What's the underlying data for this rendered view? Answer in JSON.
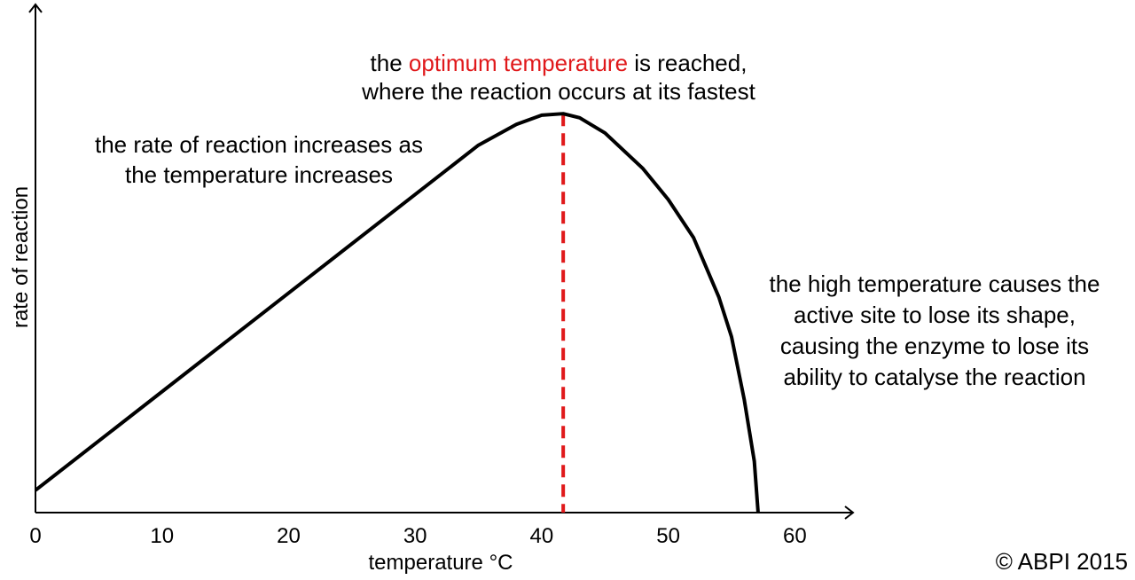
{
  "chart_data": {
    "type": "line",
    "x_label": "temperature °C",
    "y_label": "rate of reaction",
    "x": [
      0,
      10,
      20,
      30,
      35,
      38,
      40,
      41.7,
      43,
      45,
      48,
      50,
      52,
      54,
      55,
      56,
      56.8,
      57.1
    ],
    "values": [
      4.4,
      23.8,
      43.2,
      62.6,
      72.3,
      76.4,
      78.2,
      78.5,
      77.7,
      74.7,
      67.7,
      61.6,
      54.1,
      42.4,
      34.6,
      22.3,
      10.1,
      0
    ],
    "color": "#000000",
    "xlim": [
      0,
      64.6
    ],
    "ylim": [
      0,
      100
    ],
    "xticks": [
      0,
      10,
      20,
      30,
      40,
      50,
      60
    ],
    "grid": false,
    "optimum_x": 41.7,
    "optimum_color": "#e0191b",
    "optimum_note": {
      "parts": [
        "the ",
        "optimum temperature",
        " is reached,"
      ],
      "line2": "where the reaction occurs at its fastest"
    },
    "rise_note": [
      "the rate of reaction increases as",
      "the temperature increases"
    ],
    "fall_note": [
      "the high temperature causes the",
      "active site to lose its shape,",
      "causing the enzyme to lose its",
      "ability to catalyse the reaction"
    ],
    "source": "© ABPI 2015"
  }
}
